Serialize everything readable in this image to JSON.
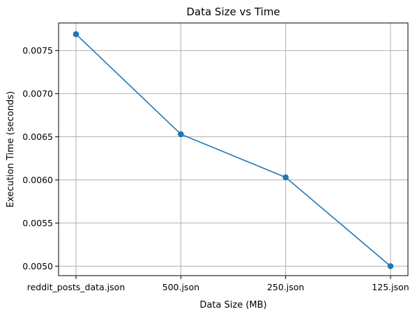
{
  "chart_data": {
    "type": "line",
    "title": "Data Size vs Time",
    "xlabel": "Data Size (MB)",
    "ylabel": "Execution Time (seconds)",
    "categories": [
      "reddit_posts_data.json",
      "500.json",
      "250.json",
      "125.json"
    ],
    "series": [
      {
        "values": [
          0.00769,
          0.00653,
          0.00603,
          0.005
        ],
        "color": "#1f77b4",
        "marker": "circle"
      }
    ],
    "ylim": [
      0.00489,
      0.00782
    ],
    "yticks": [
      0.005,
      0.0055,
      0.006,
      0.0065,
      0.007,
      0.0075
    ],
    "ytick_labels": [
      "0.0050",
      "0.0055",
      "0.0060",
      "0.0065",
      "0.0070",
      "0.0075"
    ],
    "grid": true,
    "legend": "none"
  }
}
